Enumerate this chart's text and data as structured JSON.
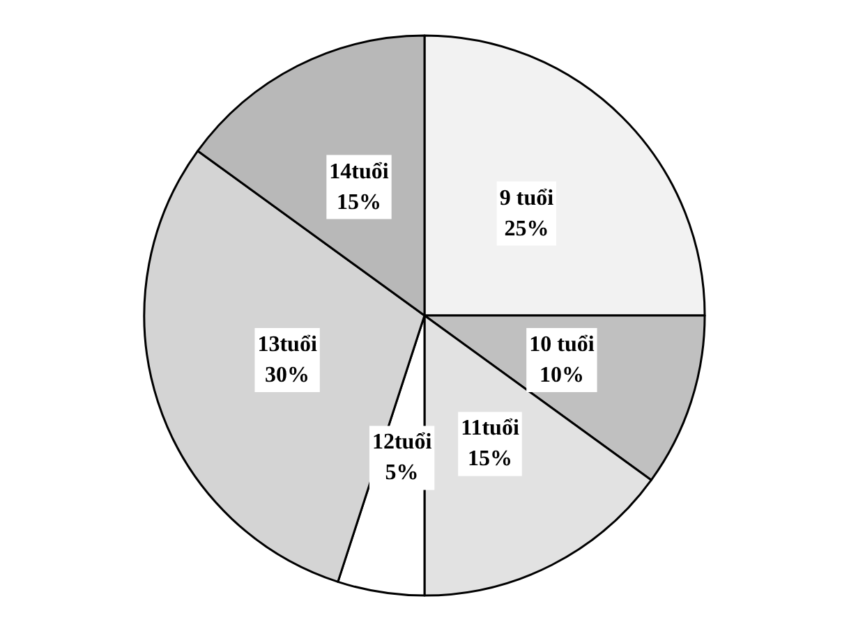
{
  "chart_data": {
    "type": "pie",
    "categories": [
      "9 tuổi",
      "10 tuổi",
      "11tuổi",
      "12tuổi",
      "13tuổi",
      "14tuổi"
    ],
    "values": [
      25,
      10,
      15,
      5,
      30,
      15
    ],
    "value_labels": [
      "25%",
      "10%",
      "15%",
      "5%",
      "30%",
      "15%"
    ],
    "colors": [
      "#f2f2f2",
      "#c0c0c0",
      "#e2e2e2",
      "#ffffff",
      "#d4d4d4",
      "#b8b8b8"
    ],
    "legend": false
  }
}
